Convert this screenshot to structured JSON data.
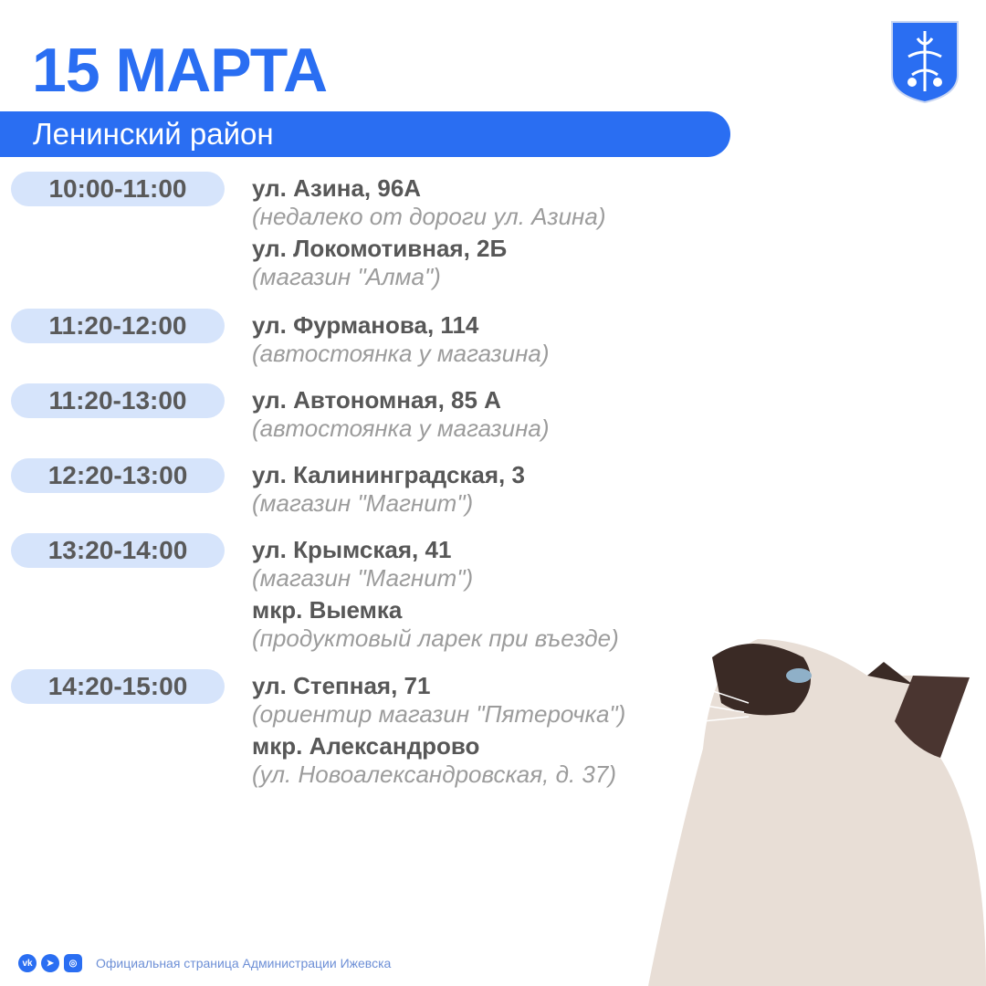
{
  "title": "15 МАРТА",
  "district": "Ленинский район",
  "schedule": [
    {
      "time": "10:00-11:00",
      "entries": [
        {
          "address": "ул. Азина, 96А",
          "note": "(недалеко от дороги ул. Азина)"
        },
        {
          "address": "ул. Локомотивная, 2Б",
          "note": "(магазин \"Алма\")"
        }
      ]
    },
    {
      "time": "11:20-12:00",
      "entries": [
        {
          "address": "ул. Фурманова, 114",
          "note": "(автостоянка у магазина)"
        }
      ]
    },
    {
      "time": "11:20-13:00",
      "entries": [
        {
          "address": "ул. Автономная, 85 А",
          "note": "(автостоянка у магазина)"
        }
      ]
    },
    {
      "time": "12:20-13:00",
      "entries": [
        {
          "address": "ул. Калининградская, 3",
          "note": "(магазин \"Магнит\")"
        }
      ]
    },
    {
      "time": "13:20-14:00",
      "entries": [
        {
          "address": "ул. Крымская, 41",
          "note": "(магазин \"Магнит\")"
        },
        {
          "address": "мкр. Выемка",
          "note": "(продуктовый ларек при въезде)"
        }
      ]
    },
    {
      "time": "14:20-15:00",
      "entries": [
        {
          "address": "ул. Степная, 71",
          "note": "(ориентир магазин \"Пятерочка\")"
        },
        {
          "address": "мкр. Александрово",
          "note": "(ул. Новоалександровская, д. 37)"
        }
      ]
    }
  ],
  "footer": {
    "text": "Официальная страница Администрации Ижевска",
    "icons": [
      "vk-icon",
      "telegram-icon",
      "max-messenger-icon"
    ]
  },
  "colors": {
    "accent": "#2a6ef2",
    "pill": "#d6e4fb"
  }
}
